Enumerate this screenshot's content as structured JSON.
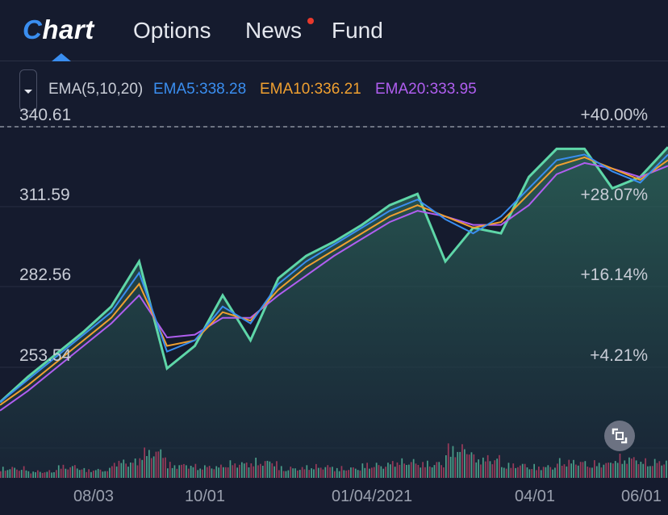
{
  "nav": {
    "logo": "Chart",
    "tabs": [
      {
        "label": "Options",
        "active": false
      },
      {
        "label": "News",
        "active": false,
        "has_notification": true
      },
      {
        "label": "Fund",
        "active": false
      }
    ]
  },
  "indicator": {
    "name": "EMA(5,10,20)",
    "ema5": "EMA5:338.28",
    "ema10": "EMA10:336.21",
    "ema20": "EMA20:333.95"
  },
  "colors": {
    "ema5": "#3a8ef0",
    "ema10": "#f0a030",
    "ema20": "#b05ef0",
    "price": "#5ed6a8",
    "accent": "#3a8ef0"
  },
  "chart_data": {
    "type": "line",
    "y_ticks": [
      "340.61",
      "311.59",
      "282.56",
      "253.54"
    ],
    "pct_ticks": [
      "+40.00%",
      "+28.07%",
      "+16.14%",
      "+4.21%"
    ],
    "x_ticks": [
      "08/03",
      "10/01",
      "01/04/2021",
      "04/01",
      "06/01"
    ],
    "ylim": [
      240,
      345
    ],
    "last_price_line": 340.61,
    "series": [
      {
        "name": "EMA5",
        "values": [
          250,
          258,
          266,
          274,
          282,
          296,
          268,
          272,
          284,
          278,
          292,
          300,
          306,
          312,
          318,
          322,
          315,
          310,
          316,
          326,
          336,
          338,
          332,
          328,
          338
        ]
      },
      {
        "name": "EMA10",
        "values": [
          249,
          256,
          264,
          272,
          280,
          292,
          270,
          272,
          282,
          279,
          290,
          298,
          304,
          310,
          316,
          320,
          316,
          312,
          314,
          324,
          334,
          337,
          333,
          329,
          336
        ]
      },
      {
        "name": "EMA20",
        "values": [
          247,
          254,
          262,
          270,
          278,
          288,
          273,
          274,
          280,
          280,
          288,
          295,
          302,
          308,
          314,
          318,
          316,
          313,
          313,
          320,
          331,
          335,
          333,
          330,
          334
        ]
      }
    ],
    "price": [
      250,
      259,
      267,
      275,
      284,
      300,
      262,
      270,
      288,
      272,
      294,
      302,
      307,
      313,
      320,
      324,
      300,
      312,
      310,
      330,
      340,
      340,
      326,
      330,
      340.61
    ],
    "volume": [
      0.3,
      0.2,
      0.35,
      0.25,
      0.5,
      0.8,
      0.4,
      0.35,
      0.45,
      0.5,
      0.3,
      0.35,
      0.3,
      0.4,
      0.5,
      0.45,
      0.9,
      0.6,
      0.4,
      0.35,
      0.5,
      0.45,
      0.6,
      0.5,
      0.4
    ]
  }
}
